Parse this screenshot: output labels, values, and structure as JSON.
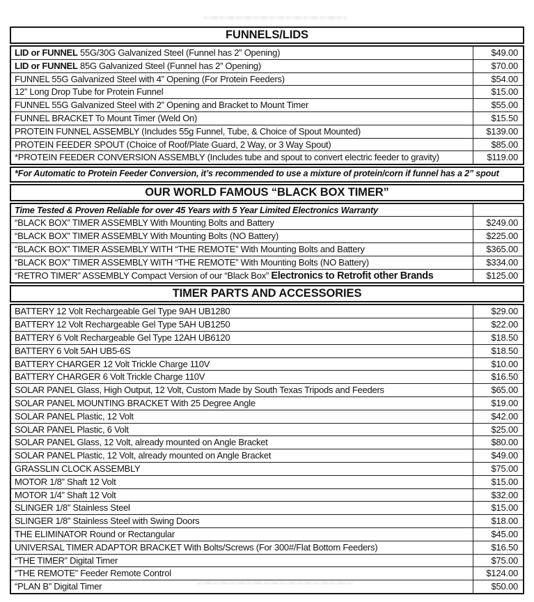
{
  "sections": [
    {
      "title": "FUNNELS/LIDS",
      "rows": [
        {
          "bold_prefix": "LID or FUNNEL",
          "label": " 55G/30G Galvanized Steel (Funnel has 2” Opening)",
          "price": "$49.00"
        },
        {
          "bold_prefix": "LID or FUNNEL",
          "label": " 85G Galvanized Steel (Funnel has 2” Opening)",
          "price": "$70.00"
        },
        {
          "label": "FUNNEL 55G Galvanized Steel with 4” Opening (For Protein Feeders)",
          "price": "$54.00"
        },
        {
          "label": "12” Long Drop Tube for Protein Funnel",
          "price": "$15.00"
        },
        {
          "label": "FUNNEL  55G Galvanized Steel with 2” Opening and Bracket to Mount Timer",
          "price": "$55.00"
        },
        {
          "label": "FUNNEL BRACKET To Mount Timer (Weld On)",
          "price": "$15.50"
        },
        {
          "label": "PROTEIN FUNNEL ASSEMBLY (Includes 55g Funnel, Tube, & Choice of Spout Mounted)",
          "price": "$139.00"
        },
        {
          "label": "PROTEIN FEEDER SPOUT (Choice of Roof/Plate Guard, 2 Way, or 3 Way Spout)",
          "price": "$85.00"
        },
        {
          "label": "*PROTEIN FEEDER CONVERSION ASSEMBLY (Includes tube and spout to convert electric feeder to gravity)",
          "price": "$119.00"
        }
      ],
      "footnote": "*For Automatic to Protein Feeder Conversion, it’s recommended to use a mixture of protein/corn if funnel has a 2” spout"
    },
    {
      "title": "OUR WORLD FAMOUS “BLACK BOX TIMER”",
      "rows": [
        {
          "style": "note",
          "label": "Time Tested & Proven Reliable for over 45 Years with 5 Year Limited Electronics Warranty",
          "price": ""
        },
        {
          "label": "“BLACK BOX” TIMER ASSEMBLY With Mounting Bolts and Battery",
          "price": "$249.00"
        },
        {
          "label": "“BLACK BOX” TIMER ASSEMBLY With Mounting Bolts (NO Battery)",
          "price": "$225.00"
        },
        {
          "label": "“BLACK BOX” TIMER ASSEMBLY WITH “THE REMOTE” With Mounting Bolts and Battery",
          "price": "$365.00"
        },
        {
          "label": "“BLACK BOX” TIMER ASSEMBLY WITH “THE REMOTE” With Mounting Bolts (NO Battery)",
          "price": "$334.00"
        },
        {
          "label": "“RETRO TIMER” ASSEMBLY Compact Version of our “Black Box” ",
          "bold_suffix": "Electronics to Retrofit other Brands",
          "price": "$125.00"
        }
      ]
    },
    {
      "title": "TIMER PARTS AND ACCESSORIES",
      "rows": [
        {
          "label": "BATTERY 12 Volt Rechargeable Gel Type 9AH UB1280",
          "price": "$29.00"
        },
        {
          "label": "BATTERY 12 Volt Rechargeable Gel Type 5AH UB1250",
          "price": "$22.00"
        },
        {
          "label": "BATTERY 6 Volt Rechargeable Gel Type 12AH UB6120",
          "price": "$18.50"
        },
        {
          "label": "BATTERY 6 Volt 5AH UB5-6S",
          "price": "$18.50"
        },
        {
          "label": "BATTERY CHARGER 12 Volt Trickle Charge 110V",
          "price": "$10.00"
        },
        {
          "label": "BATTERY CHARGER 6 Volt Trickle Charge 110V",
          "price": "$16.50"
        },
        {
          "label": "SOLAR PANEL Glass, High Output, 12 Volt, Custom Made by South Texas Tripods and Feeders",
          "price": "$65.00"
        },
        {
          "label": "SOLAR PANEL MOUNTING BRACKET With 25 Degree Angle",
          "price": "$19.00"
        },
        {
          "label": "SOLAR PANEL Plastic, 12 Volt",
          "price": "$42.00"
        },
        {
          "label": "SOLAR PANEL Plastic, 6 Volt",
          "price": "$25.00"
        },
        {
          "label": "SOLAR PANEL Glass, 12 Volt, already mounted on Angle Bracket",
          "price": "$80.00"
        },
        {
          "label": "SOLAR PANEL Plastic, 12 Volt, already mounted on Angle Bracket",
          "price": "$49.00"
        },
        {
          "label": "GRASSLIN CLOCK ASSEMBLY",
          "price": "$75.00"
        },
        {
          "label": "MOTOR 1/8” Shaft 12 Volt",
          "price": "$15.00"
        },
        {
          "label": "MOTOR 1/4” Shaft 12 Volt",
          "price": "$32.00"
        },
        {
          "label": "SLINGER 1/8” Stainless Steel",
          "price": "$15.00"
        },
        {
          "label": "SLINGER 1/8” Stainless Steel with Swing Doors",
          "price": "$18.00"
        },
        {
          "label": "THE ELIMINATOR Round or Rectangular",
          "price": "$45.00"
        },
        {
          "label": "UNIVERSAL TIMER ADAPTOR BRACKET With Bolts/Screws (For 300#/Flat Bottom Feeders)",
          "price": "$16.50"
        },
        {
          "label": "“THE TIMER” Digital Timer",
          "price": "$75.00"
        },
        {
          "label": "“THE REMOTE” Feeder Remote Control",
          "price": "$124.00"
        },
        {
          "label": "“PLAN B” Digital Timer",
          "price": "$50.00"
        }
      ]
    }
  ]
}
